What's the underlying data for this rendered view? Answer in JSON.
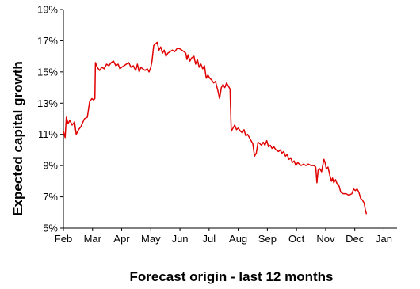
{
  "chart_data": {
    "type": "line",
    "xlabel": "Forecast origin - last 12 months",
    "ylabel": "Expected capital growth",
    "y_unit": "%",
    "ylim": [
      5,
      19
    ],
    "y_ticks": [
      "5%",
      "7%",
      "9%",
      "11%",
      "13%",
      "15%",
      "17%",
      "19%"
    ],
    "x_ticks": [
      "Feb",
      "Mar",
      "Apr",
      "May",
      "Jun",
      "Jul",
      "Aug",
      "Sep",
      "Oct",
      "Nov",
      "Dec",
      "Jan"
    ],
    "grid": false,
    "legend": "none",
    "series": [
      {
        "color": "#e00000",
        "points": [
          [
            0.0,
            11.2
          ],
          [
            0.06,
            10.8
          ],
          [
            0.1,
            12.1
          ],
          [
            0.16,
            11.7
          ],
          [
            0.22,
            11.9
          ],
          [
            0.3,
            11.6
          ],
          [
            0.38,
            11.8
          ],
          [
            0.44,
            11.0
          ],
          [
            0.52,
            11.3
          ],
          [
            0.6,
            11.5
          ],
          [
            0.72,
            12.0
          ],
          [
            0.82,
            12.1
          ],
          [
            0.9,
            13.1
          ],
          [
            0.98,
            13.3
          ],
          [
            1.04,
            13.2
          ],
          [
            1.08,
            13.3
          ],
          [
            1.1,
            15.6
          ],
          [
            1.16,
            15.3
          ],
          [
            1.24,
            15.1
          ],
          [
            1.32,
            15.3
          ],
          [
            1.4,
            15.2
          ],
          [
            1.48,
            15.5
          ],
          [
            1.56,
            15.4
          ],
          [
            1.64,
            15.6
          ],
          [
            1.72,
            15.7
          ],
          [
            1.8,
            15.4
          ],
          [
            1.88,
            15.5
          ],
          [
            1.94,
            15.2
          ],
          [
            2.0,
            15.3
          ],
          [
            2.08,
            15.4
          ],
          [
            2.16,
            15.5
          ],
          [
            2.24,
            15.6
          ],
          [
            2.32,
            15.3
          ],
          [
            2.4,
            15.4
          ],
          [
            2.48,
            15.1
          ],
          [
            2.54,
            15.5
          ],
          [
            2.6,
            15.0
          ],
          [
            2.66,
            15.3
          ],
          [
            2.72,
            15.2
          ],
          [
            2.8,
            15.1
          ],
          [
            2.88,
            15.2
          ],
          [
            2.94,
            15.0
          ],
          [
            3.0,
            15.3
          ],
          [
            3.04,
            15.7
          ],
          [
            3.1,
            16.7
          ],
          [
            3.16,
            16.8
          ],
          [
            3.22,
            16.9
          ],
          [
            3.28,
            16.4
          ],
          [
            3.34,
            16.6
          ],
          [
            3.4,
            16.2
          ],
          [
            3.46,
            16.4
          ],
          [
            3.52,
            16.0
          ],
          [
            3.58,
            16.2
          ],
          [
            3.66,
            16.3
          ],
          [
            3.74,
            16.4
          ],
          [
            3.82,
            16.3
          ],
          [
            3.9,
            16.5
          ],
          [
            3.98,
            16.5
          ],
          [
            4.06,
            16.4
          ],
          [
            4.14,
            16.3
          ],
          [
            4.2,
            16.2
          ],
          [
            4.24,
            15.8
          ],
          [
            4.28,
            16.1
          ],
          [
            4.34,
            15.7
          ],
          [
            4.4,
            15.9
          ],
          [
            4.48,
            16.0
          ],
          [
            4.54,
            15.5
          ],
          [
            4.6,
            15.8
          ],
          [
            4.66,
            15.3
          ],
          [
            4.72,
            15.5
          ],
          [
            4.78,
            15.2
          ],
          [
            4.84,
            15.4
          ],
          [
            4.9,
            14.6
          ],
          [
            4.96,
            14.8
          ],
          [
            5.02,
            14.6
          ],
          [
            5.08,
            14.5
          ],
          [
            5.16,
            14.3
          ],
          [
            5.22,
            14.4
          ],
          [
            5.3,
            13.8
          ],
          [
            5.36,
            13.3
          ],
          [
            5.42,
            14.0
          ],
          [
            5.48,
            14.2
          ],
          [
            5.54,
            14.0
          ],
          [
            5.6,
            14.3
          ],
          [
            5.66,
            14.1
          ],
          [
            5.72,
            13.9
          ],
          [
            5.76,
            11.2
          ],
          [
            5.82,
            11.4
          ],
          [
            5.88,
            11.6
          ],
          [
            5.94,
            11.3
          ],
          [
            6.0,
            11.4
          ],
          [
            6.08,
            11.2
          ],
          [
            6.14,
            11.1
          ],
          [
            6.2,
            11.3
          ],
          [
            6.26,
            10.9
          ],
          [
            6.32,
            11.0
          ],
          [
            6.38,
            10.8
          ],
          [
            6.44,
            10.6
          ],
          [
            6.5,
            10.4
          ],
          [
            6.56,
            9.6
          ],
          [
            6.62,
            9.8
          ],
          [
            6.68,
            10.5
          ],
          [
            6.74,
            10.4
          ],
          [
            6.8,
            10.3
          ],
          [
            6.86,
            10.5
          ],
          [
            6.92,
            10.3
          ],
          [
            6.98,
            10.6
          ],
          [
            7.04,
            10.2
          ],
          [
            7.1,
            10.3
          ],
          [
            7.16,
            10.1
          ],
          [
            7.22,
            10.2
          ],
          [
            7.3,
            10.0
          ],
          [
            7.38,
            9.9
          ],
          [
            7.44,
            10.0
          ],
          [
            7.5,
            9.8
          ],
          [
            7.56,
            9.9
          ],
          [
            7.62,
            9.6
          ],
          [
            7.68,
            9.7
          ],
          [
            7.74,
            9.4
          ],
          [
            7.8,
            9.5
          ],
          [
            7.86,
            9.2
          ],
          [
            7.92,
            9.3
          ],
          [
            7.98,
            9.0
          ],
          [
            8.04,
            9.2
          ],
          [
            8.1,
            9.1
          ],
          [
            8.16,
            9.0
          ],
          [
            8.24,
            9.1
          ],
          [
            8.32,
            9.0
          ],
          [
            8.4,
            9.1
          ],
          [
            8.5,
            9.0
          ],
          [
            8.6,
            9.0
          ],
          [
            8.66,
            8.9
          ],
          [
            8.7,
            7.9
          ],
          [
            8.74,
            8.7
          ],
          [
            8.8,
            8.8
          ],
          [
            8.86,
            8.6
          ],
          [
            8.9,
            9.0
          ],
          [
            8.94,
            9.4
          ],
          [
            8.98,
            9.2
          ],
          [
            9.02,
            8.8
          ],
          [
            9.08,
            8.9
          ],
          [
            9.14,
            8.4
          ],
          [
            9.2,
            8.0
          ],
          [
            9.24,
            8.2
          ],
          [
            9.28,
            7.9
          ],
          [
            9.34,
            8.1
          ],
          [
            9.4,
            7.8
          ],
          [
            9.46,
            7.7
          ],
          [
            9.52,
            7.3
          ],
          [
            9.6,
            7.2
          ],
          [
            9.7,
            7.2
          ],
          [
            9.8,
            7.1
          ],
          [
            9.9,
            7.2
          ],
          [
            9.96,
            7.5
          ],
          [
            10.02,
            7.4
          ],
          [
            10.08,
            7.5
          ],
          [
            10.14,
            7.3
          ],
          [
            10.2,
            6.9
          ],
          [
            10.26,
            6.8
          ],
          [
            10.32,
            6.6
          ],
          [
            10.36,
            6.2
          ],
          [
            10.4,
            5.9
          ]
        ]
      }
    ]
  }
}
